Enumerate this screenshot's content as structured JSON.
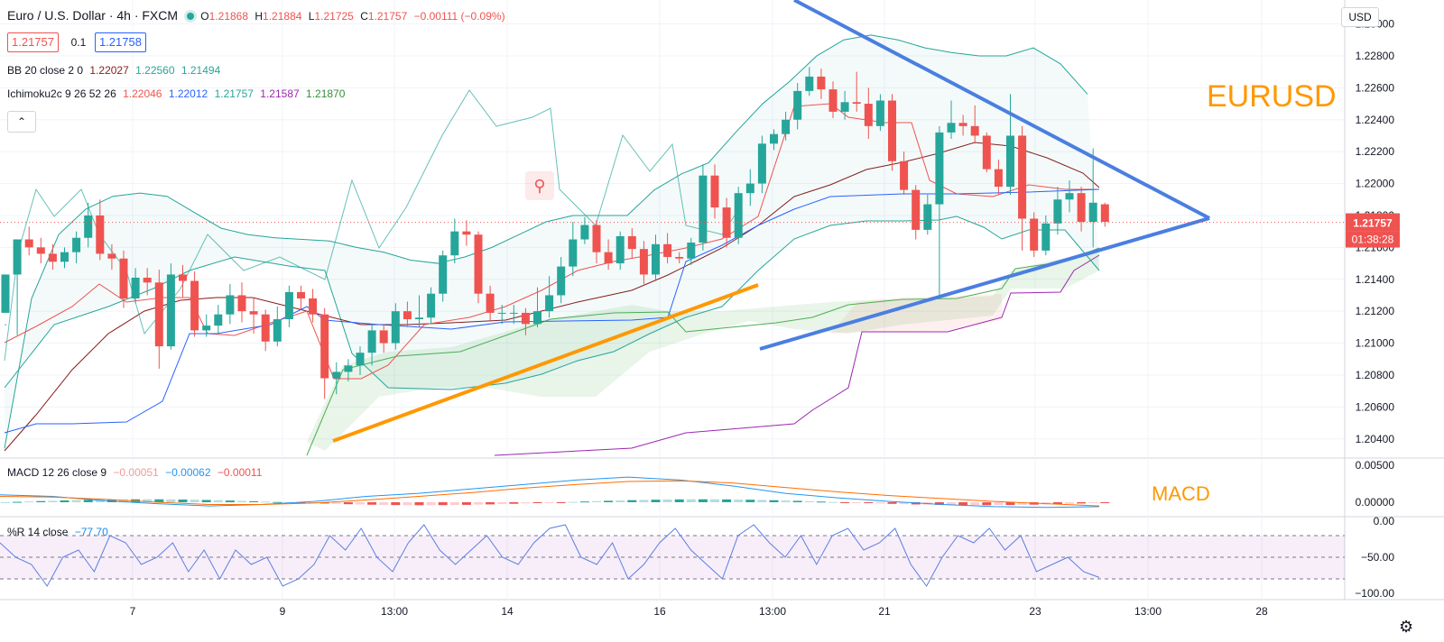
{
  "header": {
    "symbol": "Euro / U.S. Dollar · 4h · FXCM",
    "ohlc": {
      "o_label": "O",
      "o": "1.21868",
      "h_label": "H",
      "h": "1.21884",
      "l_label": "L",
      "l": "1.21725",
      "c_label": "C",
      "c": "1.21757",
      "change": "−0.00111 (−0.09%)"
    },
    "bid": "1.21757",
    "spread": "0.1",
    "ask": "1.21758",
    "bb": {
      "label": "BB 20 close 2 0",
      "v1": "1.22027",
      "v2": "1.22560",
      "v3": "1.21494"
    },
    "ichimoku": {
      "label": "Ichimoku2c 9 26 52 26",
      "v1": "1.22046",
      "v2": "1.22012",
      "v3": "1.21757",
      "v4": "1.21587",
      "v5": "1.21870"
    },
    "macd": {
      "label": "MACD 12 26 close 9",
      "v1": "−0.00051",
      "v2": "−0.00062",
      "v3": "−0.00011"
    },
    "wr": {
      "label": "%R 14 close",
      "v1": "−77.70"
    },
    "collapse_icon": "chevron-up-icon"
  },
  "colors": {
    "up": "#26a69a",
    "down": "#ef5350",
    "bb": "#26a69a",
    "tenkan": "#ef5350",
    "kijun": "#2962ff",
    "chikou": "#26a69a",
    "spanB": "#9c27b0",
    "bbMid": "#8b1a1a",
    "blueTrend": "#4a7fe0",
    "orangeTrend": "#ff9800",
    "annot": "#ff9800"
  },
  "price_axis": {
    "currency": "USD",
    "ticks": [
      "1.23000",
      "1.22800",
      "1.22600",
      "1.22400",
      "1.22200",
      "1.22000",
      "1.21800",
      "1.21600",
      "1.21400",
      "1.21200",
      "1.21000",
      "1.20800",
      "1.20600",
      "1.20400"
    ],
    "last_price": "1.21757",
    "countdown": "01:38:28"
  },
  "macd_axis": {
    "ticks": [
      "0.00500",
      "0.00000"
    ]
  },
  "wr_axis": {
    "ticks": [
      "0.00",
      "−50.00",
      "−100.00"
    ]
  },
  "time_axis": {
    "labels": [
      "7",
      "9",
      "13:00",
      "14",
      "16",
      "13:00",
      "21",
      "23",
      "13:00",
      "28"
    ]
  },
  "annotations": {
    "title": "EURUSD",
    "macd": "MACD"
  },
  "chart_data": {
    "type": "candlestick",
    "title": "Euro / U.S. Dollar · 4h · FXCM",
    "ylim": [
      1.2028,
      1.2315
    ],
    "candles": [
      [
        1.2119,
        1.2143,
        1.2112,
        1.2111
      ],
      [
        1.2143,
        1.2165,
        1.2153,
        1.2105
      ],
      [
        1.2165,
        1.216,
        1.2173,
        1.2155
      ],
      [
        1.216,
        1.2156,
        1.2166,
        1.215
      ],
      [
        1.2156,
        1.2151,
        1.2162,
        1.2146
      ],
      [
        1.2151,
        1.2157,
        1.216,
        1.2147
      ],
      [
        1.2157,
        1.2166,
        1.217,
        1.215
      ],
      [
        1.2166,
        1.218,
        1.2188,
        1.216
      ],
      [
        1.218,
        1.2156,
        1.219,
        1.2152
      ],
      [
        1.2156,
        1.2153,
        1.2162,
        1.2146
      ],
      [
        1.2153,
        1.2128,
        1.2158,
        1.2122
      ],
      [
        1.2128,
        1.2141,
        1.2147,
        1.2125
      ],
      [
        1.2141,
        1.2138,
        1.2147,
        1.213
      ],
      [
        1.2138,
        1.2098,
        1.2146,
        1.2084
      ],
      [
        1.2098,
        1.2143,
        1.215,
        1.2096
      ],
      [
        1.2143,
        1.2139,
        1.2149,
        1.2129
      ],
      [
        1.2139,
        1.2108,
        1.2145,
        1.2104
      ],
      [
        1.2108,
        1.2111,
        1.2118,
        1.2104
      ],
      [
        1.2111,
        1.2118,
        1.2124,
        1.2106
      ],
      [
        1.2118,
        1.213,
        1.2137,
        1.2112
      ],
      [
        1.213,
        1.212,
        1.2138,
        1.2113
      ],
      [
        1.212,
        1.2118,
        1.2128,
        1.2106
      ],
      [
        1.2118,
        1.2101,
        1.2121,
        1.2095
      ],
      [
        1.2101,
        1.2115,
        1.2123,
        1.2098
      ],
      [
        1.2115,
        1.2132,
        1.2136,
        1.211
      ],
      [
        1.2132,
        1.2128,
        1.2136,
        1.2121
      ],
      [
        1.2128,
        1.2118,
        1.2134,
        1.2113
      ],
      [
        1.2118,
        1.2078,
        1.2122,
        1.2065
      ],
      [
        1.2078,
        1.2082,
        1.2088,
        1.2068
      ],
      [
        1.2082,
        1.2086,
        1.209,
        1.2076
      ],
      [
        1.2086,
        1.2094,
        1.2098,
        1.208
      ],
      [
        1.2094,
        1.2108,
        1.2112,
        1.2086
      ],
      [
        1.2108,
        1.21,
        1.2112,
        1.2094
      ],
      [
        1.21,
        1.212,
        1.2125,
        1.2096
      ],
      [
        1.212,
        1.2115,
        1.2126,
        1.211
      ],
      [
        1.2115,
        1.2116,
        1.213,
        1.211
      ],
      [
        1.2116,
        1.2131,
        1.2135,
        1.2112
      ],
      [
        1.2131,
        1.2155,
        1.2158,
        1.2126
      ],
      [
        1.2155,
        1.217,
        1.2178,
        1.215
      ],
      [
        1.217,
        1.2168,
        1.2177,
        1.2161
      ],
      [
        1.2168,
        1.2131,
        1.217,
        1.2125
      ],
      [
        1.2131,
        1.2119,
        1.2136,
        1.2114
      ],
      [
        1.2119,
        1.2119,
        1.2124,
        1.2112
      ],
      [
        1.2119,
        1.2119,
        1.2124,
        1.2112
      ],
      [
        1.2119,
        1.2112,
        1.2122,
        1.2105
      ],
      [
        1.2112,
        1.212,
        1.2135,
        1.211
      ],
      [
        1.212,
        1.213,
        1.2142,
        1.2116
      ],
      [
        1.213,
        1.2148,
        1.2154,
        1.2125
      ],
      [
        1.2148,
        1.2165,
        1.2176,
        1.2142
      ],
      [
        1.2165,
        1.2174,
        1.2179,
        1.2162
      ],
      [
        1.2174,
        1.2157,
        1.2177,
        1.215
      ],
      [
        1.2157,
        1.215,
        1.2165,
        1.2146
      ],
      [
        1.215,
        1.2167,
        1.217,
        1.2146
      ],
      [
        1.2167,
        1.2159,
        1.2172,
        1.2153
      ],
      [
        1.2159,
        1.2143,
        1.2164,
        1.2137
      ],
      [
        1.2143,
        1.2162,
        1.2168,
        1.214
      ],
      [
        1.2162,
        1.2154,
        1.2169,
        1.215
      ],
      [
        1.2154,
        1.2153,
        1.2157,
        1.215
      ],
      [
        1.2153,
        1.2163,
        1.2166,
        1.2149
      ],
      [
        1.2163,
        1.2205,
        1.2212,
        1.2158
      ],
      [
        1.2205,
        1.2185,
        1.2212,
        1.2178
      ],
      [
        1.2185,
        1.2166,
        1.2191,
        1.216
      ],
      [
        1.2166,
        1.2194,
        1.2198,
        1.2162
      ],
      [
        1.2194,
        1.22,
        1.2209,
        1.2186
      ],
      [
        1.22,
        1.2225,
        1.223,
        1.2194
      ],
      [
        1.2225,
        1.2231,
        1.2234,
        1.2221
      ],
      [
        1.2231,
        1.224,
        1.2245,
        1.2227
      ],
      [
        1.224,
        1.2258,
        1.2263,
        1.2234
      ],
      [
        1.2258,
        1.2267,
        1.2273,
        1.2255
      ],
      [
        1.2267,
        1.2259,
        1.2272,
        1.2253
      ],
      [
        1.2259,
        1.2245,
        1.2264,
        1.2241
      ],
      [
        1.2245,
        1.2251,
        1.2258,
        1.224
      ],
      [
        1.2251,
        1.225,
        1.227,
        1.2245
      ],
      [
        1.225,
        1.2236,
        1.226,
        1.2228
      ],
      [
        1.2236,
        1.2252,
        1.2256,
        1.2233
      ],
      [
        1.2252,
        1.2214,
        1.2256,
        1.2208
      ],
      [
        1.2214,
        1.2196,
        1.222,
        1.2193
      ],
      [
        1.2196,
        1.2171,
        1.2199,
        1.2165
      ],
      [
        1.2171,
        1.2187,
        1.2193,
        1.2168
      ],
      [
        1.2187,
        1.2232,
        1.2236,
        1.213
      ],
      [
        1.2232,
        1.2238,
        1.2252,
        1.2228
      ],
      [
        1.2238,
        1.2236,
        1.2243,
        1.223
      ],
      [
        1.2236,
        1.223,
        1.2249,
        1.2225
      ],
      [
        1.223,
        1.2209,
        1.2232,
        1.2207
      ],
      [
        1.2209,
        1.2198,
        1.2215,
        1.2193
      ],
      [
        1.2198,
        1.223,
        1.2256,
        1.2193
      ],
      [
        1.223,
        1.2178,
        1.2236,
        1.2158
      ],
      [
        1.2178,
        1.2158,
        1.2182,
        1.2154
      ],
      [
        1.2158,
        1.2175,
        1.218,
        1.2155
      ],
      [
        1.2175,
        1.219,
        1.2198,
        1.2168
      ],
      [
        1.219,
        1.2194,
        1.2202,
        1.2182
      ],
      [
        1.2194,
        1.2176,
        1.2198,
        1.217
      ],
      [
        1.2176,
        1.2188,
        1.2222,
        1.216
      ],
      [
        1.2187,
        1.2176,
        1.2188,
        1.2173
      ]
    ],
    "bb_upper": [
      1.2034,
      1.2128,
      1.2168,
      1.2184,
      1.2192,
      1.2194,
      1.2192,
      1.2182,
      1.2172,
      1.2168,
      1.2166,
      1.2165,
      1.2164,
      1.216,
      1.2157,
      1.2152,
      1.215,
      1.2154,
      1.216,
      1.2168,
      1.2176,
      1.218,
      1.218,
      1.218,
      1.2196,
      1.2206,
      1.2213,
      1.2232,
      1.225,
      1.2264,
      1.228,
      1.229,
      1.2293,
      1.229,
      1.2285,
      1.2282,
      1.228,
      1.228,
      1.2285,
      1.2275,
      1.2256
    ],
    "bb_mid": [
      1.203,
      1.2085,
      1.2118,
      1.2128,
      1.2131,
      1.2131,
      1.213,
      1.2124,
      1.2121,
      1.2121,
      1.2119,
      1.2118,
      1.2118,
      1.2121,
      1.2126,
      1.2134,
      1.214,
      1.2146,
      1.215,
      1.2156,
      1.2168,
      1.2182,
      1.219,
      1.22,
      1.2208,
      1.2212,
      1.222,
      1.2226,
      1.223,
      1.2228,
      1.2226,
      1.2222,
      1.2216,
      1.2211,
      1.2202
    ],
    "wr_values": [
      -30,
      -50,
      -60,
      -90,
      -50,
      -40,
      -70,
      -20,
      -30,
      -60,
      -50,
      -30,
      -70,
      -40,
      -80,
      -40,
      -60,
      -50,
      -90,
      -80,
      -60,
      -20,
      -40,
      -10,
      -50,
      -70,
      -30,
      -5,
      -40,
      -60,
      -40,
      -20,
      -50,
      -60,
      -30,
      -10,
      -5,
      -50,
      -60,
      -30,
      -80,
      -60,
      -30,
      -10,
      -40,
      -60,
      -80,
      -20,
      -5,
      -30,
      -50,
      -20,
      -60,
      -20,
      -10,
      -40,
      -30,
      -10,
      -60,
      -90,
      -50,
      -20,
      -30,
      -10,
      -40,
      -20,
      -70,
      -60,
      -50,
      -70,
      -78
    ],
    "macd_line": [
      0.001,
      0.0008,
      0.0002,
      -0.0002,
      -0.0005,
      -0.0003,
      0.0001,
      0.0008,
      0.0012,
      0.0018,
      0.0024,
      0.003,
      0.0034,
      0.003,
      0.0022,
      0.0012,
      0.0006,
      0.0001,
      -0.0003,
      -0.0006,
      -0.0007,
      -0.0006
    ],
    "macd_signal": [
      0.0008,
      0.0007,
      0.0004,
      0.0,
      -0.0003,
      -0.0003,
      -0.0001,
      0.0003,
      0.0008,
      0.0013,
      0.0019,
      0.0024,
      0.0028,
      0.0029,
      0.0026,
      0.002,
      0.0014,
      0.0009,
      0.0005,
      0.0001,
      -0.0002,
      -0.0005
    ]
  }
}
